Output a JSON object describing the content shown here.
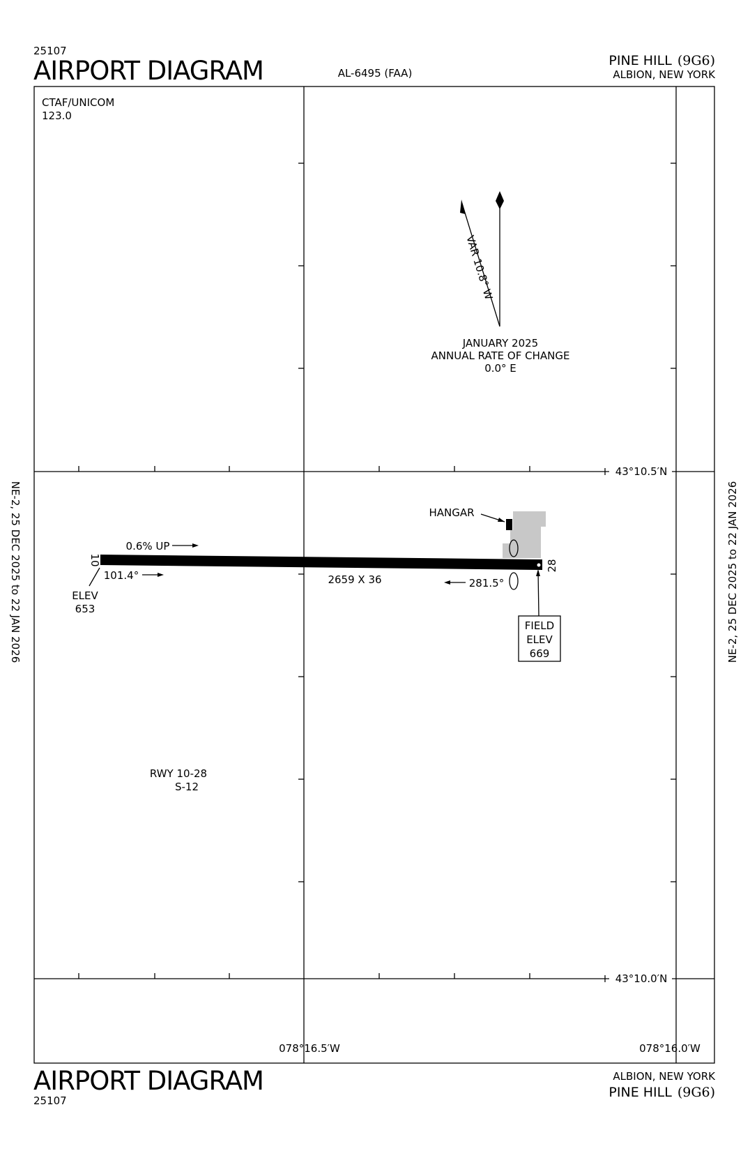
{
  "header": {
    "chart_number": "25107",
    "title": "AIRPORT DIAGRAM",
    "procedure_id": "AL-6495 (FAA)",
    "airport_name": "PINE HILL",
    "airport_id": "(9G6)",
    "location": "ALBION, NEW YORK"
  },
  "side_notes": {
    "left": "NE-2,  25 DEC 2025  to  22 JAN 2026",
    "right": "NE-2,  25 DEC 2025  to  22 JAN 2026"
  },
  "communications": {
    "label": "CTAF/UNICOM",
    "frequency": "123.0"
  },
  "magnetic": {
    "variation": "VAR 10.8° W",
    "date": "JANUARY 2025",
    "rate_label": "ANNUAL RATE OF CHANGE",
    "rate": "0.0° E"
  },
  "coordinates": {
    "lat_north": "43°10.5′N",
    "lat_south": "43°10.0′N",
    "lon_west": "078°16.5′W",
    "lon_east": "078°16.0′W"
  },
  "runway": {
    "end_west": "10",
    "end_east": "28",
    "gradient": "0.6% UP",
    "heading_west": "101.4°",
    "heading_east": "281.5°",
    "dimensions": "2659 X 36",
    "elev_label": "ELEV",
    "elev_west": "653",
    "designation": "RWY 10-28",
    "strength": "S-12"
  },
  "hangar": "HANGAR",
  "field_elevation": {
    "line1": "FIELD",
    "line2": "ELEV",
    "value": "669"
  },
  "footer": {
    "title": "AIRPORT DIAGRAM",
    "chart_number": "25107",
    "location": "ALBION, NEW YORK",
    "airport_name": "PINE HILL",
    "airport_id": "(9G6)"
  }
}
